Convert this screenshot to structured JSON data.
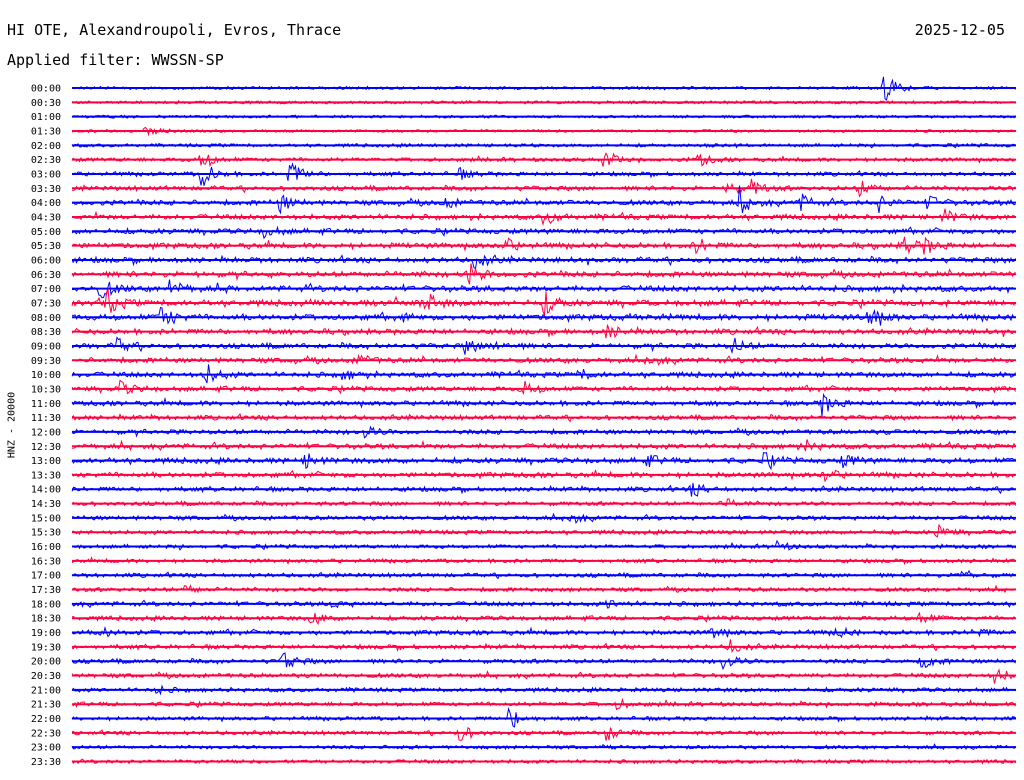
{
  "header": {
    "station": "HI OTE, Alexandroupoli, Evros, Thrace",
    "date": "2025-12-05",
    "filter_label": "Applied filter:",
    "filter_value": "WWSSN-SP"
  },
  "channel_label": "HNZ - 20000",
  "colors": {
    "even_trace": "#0000ff",
    "odd_trace": "#ff0040",
    "text": "#000000"
  },
  "chart_data": {
    "type": "line",
    "title": "",
    "rows": [
      "00:00",
      "00:30",
      "01:00",
      "01:30",
      "02:00",
      "02:30",
      "03:00",
      "03:30",
      "04:00",
      "04:30",
      "05:00",
      "05:30",
      "06:00",
      "06:30",
      "07:00",
      "07:30",
      "08:00",
      "08:30",
      "09:00",
      "09:30",
      "10:00",
      "10:30",
      "11:00",
      "11:30",
      "12:00",
      "12:30",
      "13:00",
      "13:30",
      "14:00",
      "14:30",
      "15:00",
      "15:30",
      "16:00",
      "16:30",
      "17:00",
      "17:30",
      "18:00",
      "18:30",
      "19:00",
      "19:30",
      "20:00",
      "20:30",
      "21:00",
      "21:30",
      "22:00",
      "22:30",
      "23:00",
      "23:30"
    ],
    "noise_level": [
      0.12,
      0.12,
      0.08,
      0.08,
      0.2,
      0.3,
      0.35,
      0.45,
      0.55,
      0.55,
      0.55,
      0.6,
      0.6,
      0.65,
      0.7,
      0.7,
      0.7,
      0.6,
      0.55,
      0.55,
      0.55,
      0.5,
      0.5,
      0.45,
      0.5,
      0.55,
      0.6,
      0.55,
      0.45,
      0.35,
      0.4,
      0.35,
      0.3,
      0.3,
      0.35,
      0.35,
      0.45,
      0.4,
      0.45,
      0.4,
      0.4,
      0.4,
      0.35,
      0.35,
      0.3,
      0.3,
      0.25,
      0.25
    ],
    "events": [
      {
        "row": "00:00",
        "minute": 25.8,
        "amp": 1.0
      },
      {
        "row": "01:30",
        "minute": 2.3,
        "amp": 0.35
      },
      {
        "row": "02:30",
        "minute": 4.1,
        "amp": 0.7
      },
      {
        "row": "02:30",
        "minute": 16.9,
        "amp": 0.6
      },
      {
        "row": "02:30",
        "minute": 19.9,
        "amp": 0.45
      },
      {
        "row": "03:00",
        "minute": 4.1,
        "amp": 1.0
      },
      {
        "row": "03:00",
        "minute": 6.9,
        "amp": 0.9
      },
      {
        "row": "03:00",
        "minute": 12.3,
        "amp": 0.35
      },
      {
        "row": "03:30",
        "minute": 20.8,
        "amp": 0.45
      },
      {
        "row": "03:30",
        "minute": 21.6,
        "amp": 0.6
      },
      {
        "row": "03:30",
        "minute": 25.0,
        "amp": 0.6
      },
      {
        "row": "04:00",
        "minute": 6.6,
        "amp": 0.6
      },
      {
        "row": "04:00",
        "minute": 11.8,
        "amp": 0.4
      },
      {
        "row": "04:00",
        "minute": 21.2,
        "amp": 0.9
      },
      {
        "row": "04:00",
        "minute": 23.1,
        "amp": 0.65
      },
      {
        "row": "04:00",
        "minute": 25.6,
        "amp": 0.6
      },
      {
        "row": "04:00",
        "minute": 27.2,
        "amp": 0.5
      },
      {
        "row": "04:30",
        "minute": 15.0,
        "amp": 0.55
      },
      {
        "row": "04:30",
        "minute": 27.7,
        "amp": 0.5
      },
      {
        "row": "05:00",
        "minute": 6.1,
        "amp": 0.45
      },
      {
        "row": "05:30",
        "minute": 13.7,
        "amp": 0.55
      },
      {
        "row": "05:30",
        "minute": 19.8,
        "amp": 0.6
      },
      {
        "row": "05:30",
        "minute": 26.4,
        "amp": 0.6
      },
      {
        "row": "05:30",
        "minute": 27.1,
        "amp": 0.55
      },
      {
        "row": "06:00",
        "minute": 12.8,
        "amp": 0.6
      },
      {
        "row": "06:30",
        "minute": 12.6,
        "amp": 0.7
      },
      {
        "row": "07:00",
        "minute": 0.9,
        "amp": 0.7
      },
      {
        "row": "07:00",
        "minute": 3.1,
        "amp": 0.6
      },
      {
        "row": "07:00",
        "minute": 30.0,
        "amp": 0.4
      },
      {
        "row": "07:30",
        "minute": 1.1,
        "amp": 0.9
      },
      {
        "row": "07:30",
        "minute": 11.3,
        "amp": 0.6
      },
      {
        "row": "07:30",
        "minute": 15.0,
        "amp": 0.75
      },
      {
        "row": "08:00",
        "minute": 2.8,
        "amp": 0.9
      },
      {
        "row": "08:00",
        "minute": 25.3,
        "amp": 0.9
      },
      {
        "row": "08:30",
        "minute": 17.0,
        "amp": 0.5
      },
      {
        "row": "09:00",
        "minute": 1.4,
        "amp": 0.5
      },
      {
        "row": "09:00",
        "minute": 12.5,
        "amp": 0.5
      },
      {
        "row": "09:00",
        "minute": 13.4,
        "amp": 0.55
      },
      {
        "row": "09:00",
        "minute": 21.0,
        "amp": 0.55
      },
      {
        "row": "09:30",
        "minute": 9.1,
        "amp": 0.4
      },
      {
        "row": "09:30",
        "minute": 18.3,
        "amp": 0.45
      },
      {
        "row": "10:00",
        "minute": 4.2,
        "amp": 0.8
      },
      {
        "row": "10:00",
        "minute": 8.6,
        "amp": 0.35
      },
      {
        "row": "10:00",
        "minute": 16.1,
        "amp": 0.35
      },
      {
        "row": "10:30",
        "minute": 1.5,
        "amp": 0.5
      },
      {
        "row": "10:30",
        "minute": 14.3,
        "amp": 0.6
      },
      {
        "row": "11:00",
        "minute": 23.8,
        "amp": 0.9
      },
      {
        "row": "12:00",
        "minute": 9.3,
        "amp": 0.4
      },
      {
        "row": "12:30",
        "minute": 23.2,
        "amp": 0.45
      },
      {
        "row": "13:00",
        "minute": 7.4,
        "amp": 0.5
      },
      {
        "row": "13:00",
        "minute": 18.2,
        "amp": 0.45
      },
      {
        "row": "13:00",
        "minute": 22.0,
        "amp": 0.5
      },
      {
        "row": "13:00",
        "minute": 24.5,
        "amp": 0.45
      },
      {
        "row": "13:30",
        "minute": 23.9,
        "amp": 0.45
      },
      {
        "row": "14:00",
        "minute": 19.7,
        "amp": 0.5
      },
      {
        "row": "14:30",
        "minute": 20.7,
        "amp": 0.35
      },
      {
        "row": "15:00",
        "minute": 15.8,
        "amp": 0.45
      },
      {
        "row": "15:30",
        "minute": 27.5,
        "amp": 0.45
      },
      {
        "row": "16:00",
        "minute": 22.3,
        "amp": 0.4
      },
      {
        "row": "17:00",
        "minute": 28.2,
        "amp": 0.5
      },
      {
        "row": "17:30",
        "minute": 3.6,
        "amp": 0.3
      },
      {
        "row": "18:00",
        "minute": 8.2,
        "amp": 0.3
      },
      {
        "row": "18:00",
        "minute": 17.0,
        "amp": 0.3
      },
      {
        "row": "18:30",
        "minute": 7.6,
        "amp": 0.5
      },
      {
        "row": "18:30",
        "minute": 26.9,
        "amp": 0.45
      },
      {
        "row": "19:00",
        "minute": 0.9,
        "amp": 0.35
      },
      {
        "row": "19:00",
        "minute": 20.3,
        "amp": 0.45
      },
      {
        "row": "19:00",
        "minute": 24.3,
        "amp": 0.4
      },
      {
        "row": "19:00",
        "minute": 28.6,
        "amp": 0.35
      },
      {
        "row": "19:30",
        "minute": 20.9,
        "amp": 0.45
      },
      {
        "row": "20:00",
        "minute": 6.7,
        "amp": 0.65
      },
      {
        "row": "20:00",
        "minute": 20.7,
        "amp": 0.55
      },
      {
        "row": "20:00",
        "minute": 27.0,
        "amp": 0.55
      },
      {
        "row": "20:30",
        "minute": 29.3,
        "amp": 0.55
      },
      {
        "row": "21:00",
        "minute": 2.6,
        "amp": 0.3
      },
      {
        "row": "21:30",
        "minute": 17.3,
        "amp": 0.35
      },
      {
        "row": "22:00",
        "minute": 13.9,
        "amp": 0.85
      },
      {
        "row": "22:30",
        "minute": 12.3,
        "amp": 0.6
      },
      {
        "row": "22:30",
        "minute": 16.9,
        "amp": 0.7
      }
    ]
  }
}
